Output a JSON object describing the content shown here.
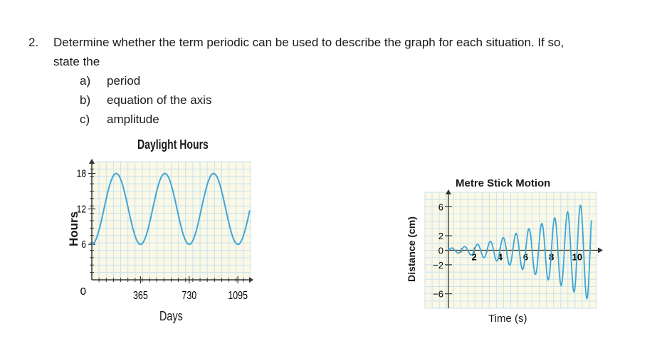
{
  "question": {
    "number": "2.",
    "text_line1": "Determine whether the term periodic can be used to describe the graph for each situation. If so,",
    "text_line2": "state the",
    "parts": [
      {
        "label": "a)",
        "text": "period"
      },
      {
        "label": "b)",
        "text": "equation of the axis"
      },
      {
        "label": "c)",
        "text": "amplitude"
      }
    ]
  },
  "chart_data": [
    {
      "type": "line",
      "title": "Daylight Hours",
      "xlabel": "Days",
      "ylabel": "Hours",
      "xlim": [
        0,
        1190
      ],
      "ylim": [
        0,
        20
      ],
      "x_ticks": [
        "365",
        "730",
        "1095"
      ],
      "y_ticks": [
        "6",
        "12",
        "18"
      ],
      "origin_label": "0",
      "grid": true,
      "series_color": "#3fa6d6",
      "curve": {
        "period": 365,
        "midline": 12,
        "amplitude": 6,
        "minimum_at_x": 0
      }
    },
    {
      "type": "line",
      "title": "Metre Stick Motion",
      "xlabel": "Time (s)",
      "ylabel": "Distance (cm)",
      "xlim": [
        0,
        11.5
      ],
      "ylim": [
        -8,
        8
      ],
      "x_ticks": [
        "2",
        "4",
        "6",
        "8",
        "10"
      ],
      "y_ticks": [
        "6",
        "2",
        "0",
        "−2",
        "−6"
      ],
      "grid": true,
      "series_color": "#3fa6d6",
      "curve": {
        "period": 1,
        "amplitude_start": 0.3,
        "amplitude_end": 7,
        "midline": 0
      }
    }
  ]
}
